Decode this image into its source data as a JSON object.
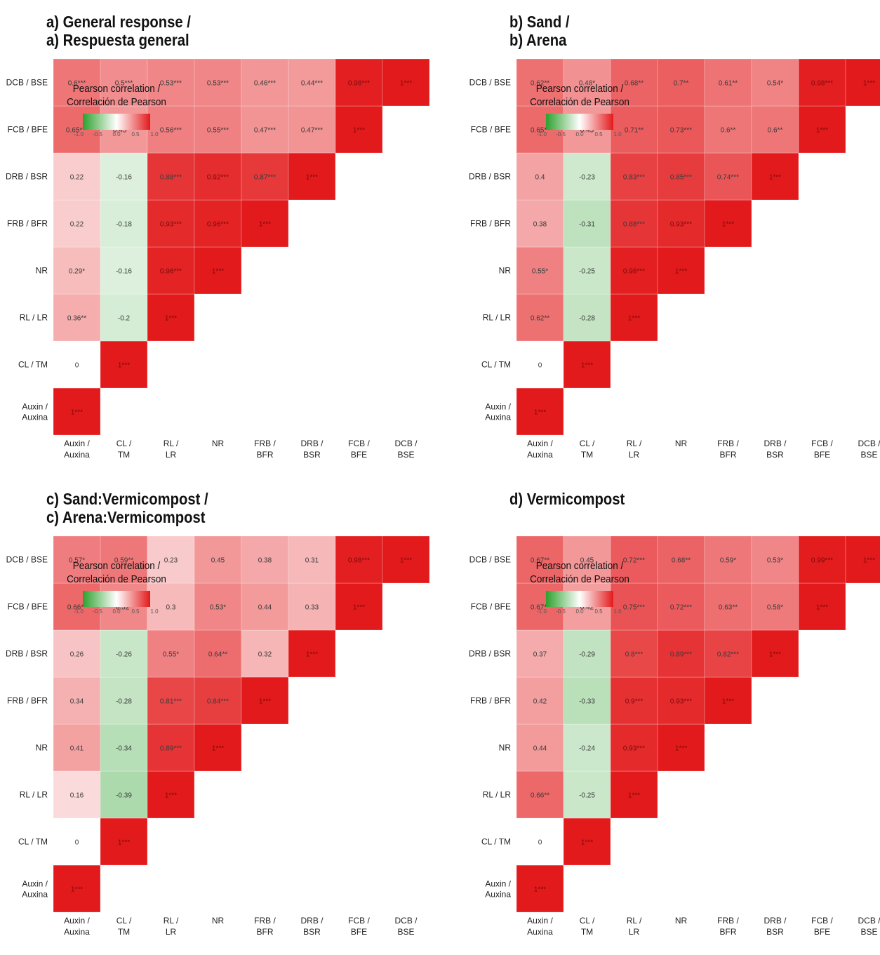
{
  "legend": {
    "title_line1": "Pearson correlation /",
    "title_line2": "Correlación de Pearson",
    "ticks": [
      "-1.0",
      "-0.5",
      "0.0",
      "0.5",
      "1.0"
    ],
    "colors": {
      "low": "#2ca02c",
      "mid": "#ffffff",
      "high": "#e31a1c"
    }
  },
  "chart_data": [
    {
      "type": "heatmap",
      "title_line1": "a) General response /",
      "title_line2": "a) Respuesta general",
      "variables": [
        "Auxin / Auxina",
        "CL / TM",
        "RL / LR",
        "NR",
        "FRB / BFR",
        "DRB / BSR",
        "FCB / BFE",
        "DCB / BSE"
      ],
      "y_tick_labels": [
        "Auxin / Auxina",
        "CL / TM",
        "RL / LR",
        "NR",
        "FRB / BFR",
        "DRB / BSR",
        "FCB / BFE",
        "DCB / BSE"
      ],
      "x_tick_labels": [
        "Auxin / Auxina",
        "CL / TM",
        "RL / LR",
        "NR",
        "FRB / BFR",
        "DRB / BSR",
        "FCB / BFE",
        "DCB / BSE"
      ],
      "matrix": [
        [
          1
        ],
        [
          0,
          1
        ],
        [
          0.36,
          -0.2,
          1
        ],
        [
          0.29,
          -0.16,
          0.96,
          1
        ],
        [
          0.22,
          -0.18,
          0.93,
          0.96,
          1
        ],
        [
          0.22,
          -0.16,
          0.88,
          0.92,
          0.87,
          1
        ],
        [
          0.65,
          0.45,
          0.56,
          0.55,
          0.47,
          0.47,
          1
        ],
        [
          0.6,
          0.5,
          0.53,
          0.53,
          0.46,
          0.44,
          0.98,
          1
        ]
      ],
      "labels": [
        [
          "1***"
        ],
        [
          "0",
          "1***"
        ],
        [
          "0.36**",
          "-0.2",
          "1***"
        ],
        [
          "0.29*",
          "-0.16",
          "0.96***",
          "1***"
        ],
        [
          "0.22",
          "-0.18",
          "0.93***",
          "0.96***",
          "1***"
        ],
        [
          "0.22",
          "-0.16",
          "0.88***",
          "0.92***",
          "0.87***",
          "1***"
        ],
        [
          "0.65***",
          "0.45***",
          "0.56***",
          "0.55***",
          "0.47***",
          "0.47***",
          "1***"
        ],
        [
          "0.6***",
          "0.5***",
          "0.53***",
          "0.53***",
          "0.46***",
          "0.44***",
          "0.98***",
          "1***"
        ]
      ],
      "color_range": [
        -1,
        1
      ]
    },
    {
      "type": "heatmap",
      "title_line1": "b) Sand /",
      "title_line2": "b) Arena",
      "variables": [
        "Auxin / Auxina",
        "CL / TM",
        "RL / LR",
        "NR",
        "FRB / BFR",
        "DRB / BSR",
        "FCB / BFE",
        "DCB / BSE"
      ],
      "y_tick_labels": [
        "Auxin / Auxina",
        "CL / TM",
        "RL / LR",
        "NR",
        "FRB / BFR",
        "DRB / BSR",
        "FCB / BFE",
        "DCB / BSE"
      ],
      "x_tick_labels": [
        "Auxin / Auxina",
        "CL / TM",
        "RL / LR",
        "NR",
        "FRB / BFR",
        "DRB / BSR",
        "FCB / BFE",
        "DCB / BSE"
      ],
      "matrix": [
        [
          1
        ],
        [
          0,
          1
        ],
        [
          0.62,
          -0.28,
          1
        ],
        [
          0.55,
          -0.25,
          0.98,
          1
        ],
        [
          0.38,
          -0.31,
          0.88,
          0.93,
          1
        ],
        [
          0.4,
          -0.23,
          0.83,
          0.85,
          0.74,
          1
        ],
        [
          0.65,
          0.45,
          0.71,
          0.73,
          0.6,
          0.6,
          1
        ],
        [
          0.62,
          0.48,
          0.68,
          0.7,
          0.61,
          0.54,
          0.98,
          1
        ]
      ],
      "labels": [
        [
          "1***"
        ],
        [
          "0",
          "1***"
        ],
        [
          "0.62**",
          "-0.28",
          "1***"
        ],
        [
          "0.55*",
          "-0.25",
          "0.98***",
          "1***"
        ],
        [
          "0.38",
          "-0.31",
          "0.88***",
          "0.93***",
          "1***"
        ],
        [
          "0.4",
          "-0.23",
          "0.83***",
          "0.85***",
          "0.74***",
          "1***"
        ],
        [
          "0.65**",
          "0.45",
          "0.71**",
          "0.73***",
          "0.6**",
          "0.6**",
          "1***"
        ],
        [
          "0.62**",
          "0.48*",
          "0.68**",
          "0.7**",
          "0.61**",
          "0.54*",
          "0.98***",
          "1***"
        ]
      ],
      "color_range": [
        -1,
        1
      ]
    },
    {
      "type": "heatmap",
      "title_line1": "c) Sand:Vermicompost /",
      "title_line2": "c) Arena:Vermicompost",
      "variables": [
        "Auxin / Auxina",
        "CL / TM",
        "RL / LR",
        "NR",
        "FRB / BFR",
        "DRB / BSR",
        "FCB / BFE",
        "DCB / BSE"
      ],
      "y_tick_labels": [
        "Auxin / Auxina",
        "CL / TM",
        "RL / LR",
        "NR",
        "FRB / BFR",
        "DRB / BSR",
        "FCB / BFE",
        "DCB / BSE"
      ],
      "x_tick_labels": [
        "Auxin / Auxina",
        "CL / TM",
        "RL / LR",
        "NR",
        "FRB / BFR",
        "DRB / BSR",
        "FCB / BFE",
        "DCB / BSE"
      ],
      "matrix": [
        [
          1
        ],
        [
          0,
          1
        ],
        [
          0.16,
          -0.39,
          1
        ],
        [
          0.41,
          -0.34,
          0.89,
          1
        ],
        [
          0.34,
          -0.28,
          0.81,
          0.84,
          1
        ],
        [
          0.26,
          -0.26,
          0.55,
          0.64,
          0.32,
          1
        ],
        [
          0.66,
          0.52,
          0.3,
          0.53,
          0.44,
          0.33,
          1
        ],
        [
          0.57,
          0.59,
          0.23,
          0.45,
          0.38,
          0.31,
          0.98,
          1
        ]
      ],
      "labels": [
        [
          "1***"
        ],
        [
          "0",
          "1***"
        ],
        [
          "0.16",
          "-0.39",
          "1***"
        ],
        [
          "0.41",
          "-0.34",
          "0.89***",
          "1***"
        ],
        [
          "0.34",
          "-0.28",
          "0.81***",
          "0.84***",
          "1***"
        ],
        [
          "0.26",
          "-0.26",
          "0.55*",
          "0.64**",
          "0.32",
          "1***"
        ],
        [
          "0.66**",
          "0.52*",
          "0.3",
          "0.53*",
          "0.44",
          "0.33",
          "1***"
        ],
        [
          "0.57*",
          "0.59**",
          "0.23",
          "0.45",
          "0.38",
          "0.31",
          "0.98***",
          "1***"
        ]
      ],
      "color_range": [
        -1,
        1
      ]
    },
    {
      "type": "heatmap",
      "title_line1": "d) Vermicompost",
      "title_line2": "",
      "variables": [
        "Auxin / Auxina",
        "CL / TM",
        "RL / LR",
        "NR",
        "FRB / BFR",
        "DRB / BSR",
        "FCB / BFE",
        "DCB / BSE"
      ],
      "y_tick_labels": [
        "Auxin / Auxina",
        "CL / TM",
        "RL / LR",
        "NR",
        "FRB / BFR",
        "DRB / BSR",
        "FCB / BFE",
        "DCB / BSE"
      ],
      "x_tick_labels": [
        "Auxin / Auxina",
        "CL / TM",
        "RL / LR",
        "NR",
        "FRB / BFR",
        "DRB / BSR",
        "FCB / BFE",
        "DCB / BSE"
      ],
      "matrix": [
        [
          1
        ],
        [
          0,
          1
        ],
        [
          0.66,
          -0.25,
          1
        ],
        [
          0.44,
          -0.24,
          0.93,
          1
        ],
        [
          0.42,
          -0.33,
          0.9,
          0.93,
          1
        ],
        [
          0.37,
          -0.29,
          0.8,
          0.89,
          0.82,
          1
        ],
        [
          0.67,
          0.42,
          0.75,
          0.72,
          0.63,
          0.58,
          1
        ],
        [
          0.67,
          0.45,
          0.72,
          0.68,
          0.59,
          0.53,
          0.99,
          1
        ]
      ],
      "labels": [
        [
          "1***"
        ],
        [
          "0",
          "1***"
        ],
        [
          "0.66**",
          "-0.25",
          "1***"
        ],
        [
          "0.44",
          "-0.24",
          "0.93***",
          "1***"
        ],
        [
          "0.42",
          "-0.33",
          "0.9***",
          "0.93***",
          "1***"
        ],
        [
          "0.37",
          "-0.29",
          "0.8***",
          "0.89***",
          "0.82***",
          "1***"
        ],
        [
          "0.67**",
          "0.42",
          "0.75***",
          "0.72***",
          "0.63**",
          "0.58*",
          "1***"
        ],
        [
          "0.67**",
          "0.45",
          "0.72***",
          "0.68**",
          "0.59*",
          "0.53*",
          "0.99***",
          "1***"
        ]
      ],
      "color_range": [
        -1,
        1
      ]
    }
  ]
}
